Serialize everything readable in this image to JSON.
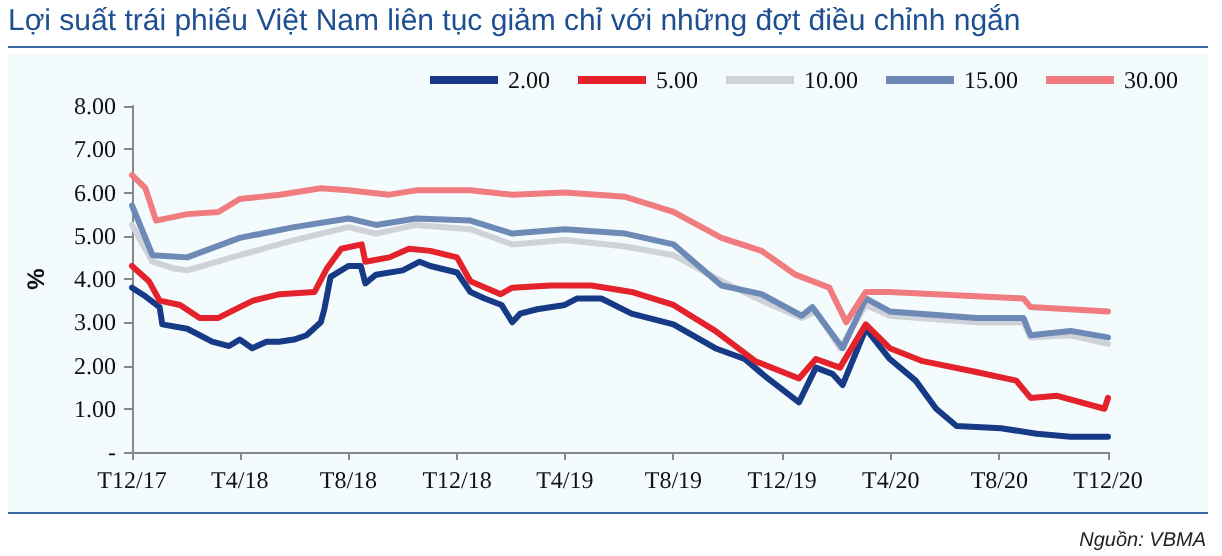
{
  "chart_data": {
    "type": "line",
    "title": "Lợi suất trái phiếu Việt Nam liên tục giảm chỉ với những đợt điều chỉnh ngắn",
    "ylabel": "%",
    "annotations": [
      "Nguồn: VBMA"
    ],
    "xlim": [
      "2017-12-01",
      "2020-12-01"
    ],
    "xticks": [
      {
        "value": "2017-12-01",
        "label": "T12/17"
      },
      {
        "value": "2018-04-01",
        "label": "T4/18"
      },
      {
        "value": "2018-08-01",
        "label": "T8/18"
      },
      {
        "value": "2018-12-01",
        "label": "T12/18"
      },
      {
        "value": "2019-04-01",
        "label": "T4/19"
      },
      {
        "value": "2019-08-01",
        "label": "T8/19"
      },
      {
        "value": "2019-12-01",
        "label": "T12/19"
      },
      {
        "value": "2020-04-01",
        "label": "T4/20"
      },
      {
        "value": "2020-08-01",
        "label": "T8/20"
      },
      {
        "value": "2020-12-01",
        "label": "T12/20"
      }
    ],
    "ylim": [
      0,
      8
    ],
    "yticks": [
      {
        "value": 0,
        "label": "-"
      },
      {
        "value": 1,
        "label": "1.00"
      },
      {
        "value": 2,
        "label": "2.00"
      },
      {
        "value": 3,
        "label": "3.00"
      },
      {
        "value": 4,
        "label": "4.00"
      },
      {
        "value": 5,
        "label": "5.00"
      },
      {
        "value": 6,
        "label": "6.00"
      },
      {
        "value": 7,
        "label": "7.00"
      },
      {
        "value": 8,
        "label": "8.00"
      }
    ],
    "grid": false,
    "legend": "top right",
    "marker": "none",
    "line_style": "solid",
    "series": [
      {
        "name": "2.00",
        "color": "#163a85",
        "x": [
          "2017-12-01",
          "2017-12-16",
          "2018-01-01",
          "2018-01-04",
          "2018-02-01",
          "2018-03-01",
          "2018-03-20",
          "2018-04-01",
          "2018-04-15",
          "2018-05-01",
          "2018-05-15",
          "2018-06-01",
          "2018-06-15",
          "2018-07-01",
          "2018-07-05",
          "2018-07-12",
          "2018-08-01",
          "2018-08-15",
          "2018-08-20",
          "2018-09-01",
          "2018-10-01",
          "2018-10-20",
          "2018-11-01",
          "2018-12-01",
          "2018-12-16",
          "2019-01-01",
          "2019-01-20",
          "2019-02-01",
          "2019-02-10",
          "2019-03-01",
          "2019-04-01",
          "2019-04-15",
          "2019-05-12",
          "2019-06-15",
          "2019-08-01",
          "2019-09-17",
          "2019-10-20",
          "2019-11-15",
          "2019-12-20",
          "2020-01-08",
          "2020-01-27",
          "2020-02-07",
          "2020-03-04",
          "2020-03-31",
          "2020-04-29",
          "2020-05-22",
          "2020-06-14",
          "2020-08-03",
          "2020-09-12",
          "2020-10-20",
          "2020-12-01"
        ],
        "values": [
          3.8,
          3.6,
          3.35,
          2.95,
          2.85,
          2.55,
          2.45,
          2.6,
          2.4,
          2.55,
          2.55,
          2.6,
          2.7,
          3.0,
          3.3,
          4.05,
          4.3,
          4.3,
          3.9,
          4.1,
          4.2,
          4.4,
          4.3,
          4.15,
          3.7,
          3.55,
          3.4,
          3.0,
          3.2,
          3.3,
          3.4,
          3.55,
          3.55,
          3.2,
          2.95,
          2.4,
          2.15,
          1.7,
          1.15,
          1.95,
          1.8,
          1.55,
          2.85,
          2.15,
          1.65,
          1.0,
          0.6,
          0.55,
          0.42,
          0.35,
          0.35
        ]
      },
      {
        "name": "5.00",
        "color": "#e3222b",
        "x": [
          "2017-12-01",
          "2017-12-20",
          "2018-01-01",
          "2018-01-24",
          "2018-02-15",
          "2018-03-08",
          "2018-04-01",
          "2018-04-16",
          "2018-05-16",
          "2018-06-24",
          "2018-07-08",
          "2018-07-24",
          "2018-08-16",
          "2018-08-20",
          "2018-09-16",
          "2018-10-08",
          "2018-11-01",
          "2018-12-01",
          "2018-12-16",
          "2019-01-19",
          "2019-02-01",
          "2019-03-16",
          "2019-05-01",
          "2019-06-15",
          "2019-08-01",
          "2019-09-17",
          "2019-11-01",
          "2019-12-20",
          "2020-01-08",
          "2020-02-04",
          "2020-03-04",
          "2020-03-31",
          "2020-05-07",
          "2020-07-06",
          "2020-08-20",
          "2020-09-05",
          "2020-10-05",
          "2020-11-27",
          "2020-12-01"
        ],
        "values": [
          4.3,
          3.95,
          3.5,
          3.4,
          3.1,
          3.1,
          3.35,
          3.5,
          3.65,
          3.7,
          4.25,
          4.7,
          4.8,
          4.4,
          4.5,
          4.7,
          4.65,
          4.5,
          3.95,
          3.65,
          3.8,
          3.85,
          3.85,
          3.7,
          3.4,
          2.8,
          2.1,
          1.7,
          2.15,
          1.95,
          2.95,
          2.4,
          2.1,
          1.85,
          1.65,
          1.25,
          1.3,
          1.0,
          1.25
        ]
      },
      {
        "name": "10.00",
        "color": "#cfd2d8",
        "x": [
          "2017-12-01",
          "2017-12-24",
          "2018-01-16",
          "2018-02-01",
          "2018-04-01",
          "2018-06-01",
          "2018-08-01",
          "2018-09-01",
          "2018-10-16",
          "2018-12-16",
          "2019-02-01",
          "2019-04-01",
          "2019-06-08",
          "2019-08-01",
          "2019-09-24",
          "2019-11-08",
          "2019-12-23",
          "2020-01-08",
          "2020-02-04",
          "2020-03-04",
          "2020-03-31",
          "2020-07-06",
          "2020-08-28",
          "2020-09-05",
          "2020-10-20",
          "2020-12-01"
        ],
        "values": [
          5.25,
          4.4,
          4.25,
          4.2,
          4.55,
          4.9,
          5.2,
          5.05,
          5.25,
          5.15,
          4.8,
          4.9,
          4.75,
          4.55,
          3.95,
          3.5,
          3.1,
          3.25,
          2.4,
          3.4,
          3.15,
          3.0,
          3.0,
          2.65,
          2.7,
          2.5
        ]
      },
      {
        "name": "15.00",
        "color": "#6d89b5",
        "x": [
          "2017-12-01",
          "2017-12-24",
          "2018-02-01",
          "2018-04-01",
          "2018-06-01",
          "2018-08-01",
          "2018-09-01",
          "2018-10-16",
          "2018-12-16",
          "2019-02-01",
          "2019-04-01",
          "2019-06-08",
          "2019-08-01",
          "2019-09-24",
          "2019-11-08",
          "2019-12-23",
          "2020-01-04",
          "2020-02-07",
          "2020-03-04",
          "2020-03-31",
          "2020-07-06",
          "2020-08-28",
          "2020-09-05",
          "2020-10-20",
          "2020-12-01"
        ],
        "values": [
          5.7,
          4.55,
          4.5,
          4.95,
          5.2,
          5.4,
          5.25,
          5.4,
          5.35,
          5.05,
          5.15,
          5.05,
          4.8,
          3.85,
          3.65,
          3.15,
          3.35,
          2.4,
          3.55,
          3.25,
          3.1,
          3.1,
          2.7,
          2.8,
          2.65
        ]
      },
      {
        "name": "30.00",
        "color": "#f07c80",
        "x": [
          "2017-12-01",
          "2017-12-16",
          "2017-12-28",
          "2018-02-01",
          "2018-03-08",
          "2018-04-01",
          "2018-05-16",
          "2018-07-01",
          "2018-08-01",
          "2018-09-16",
          "2018-10-16",
          "2018-12-16",
          "2019-02-01",
          "2019-04-01",
          "2019-06-08",
          "2019-08-01",
          "2019-09-24",
          "2019-11-08",
          "2019-12-16",
          "2020-01-23",
          "2020-02-11",
          "2020-03-04",
          "2020-03-31",
          "2020-07-06",
          "2020-08-28",
          "2020-09-05",
          "2020-12-01"
        ],
        "values": [
          6.4,
          6.1,
          5.35,
          5.5,
          5.55,
          5.85,
          5.95,
          6.1,
          6.05,
          5.95,
          6.05,
          6.05,
          5.95,
          6.0,
          5.9,
          5.55,
          4.95,
          4.65,
          4.1,
          3.8,
          3.0,
          3.7,
          3.7,
          3.6,
          3.55,
          3.35,
          3.25
        ]
      }
    ]
  }
}
